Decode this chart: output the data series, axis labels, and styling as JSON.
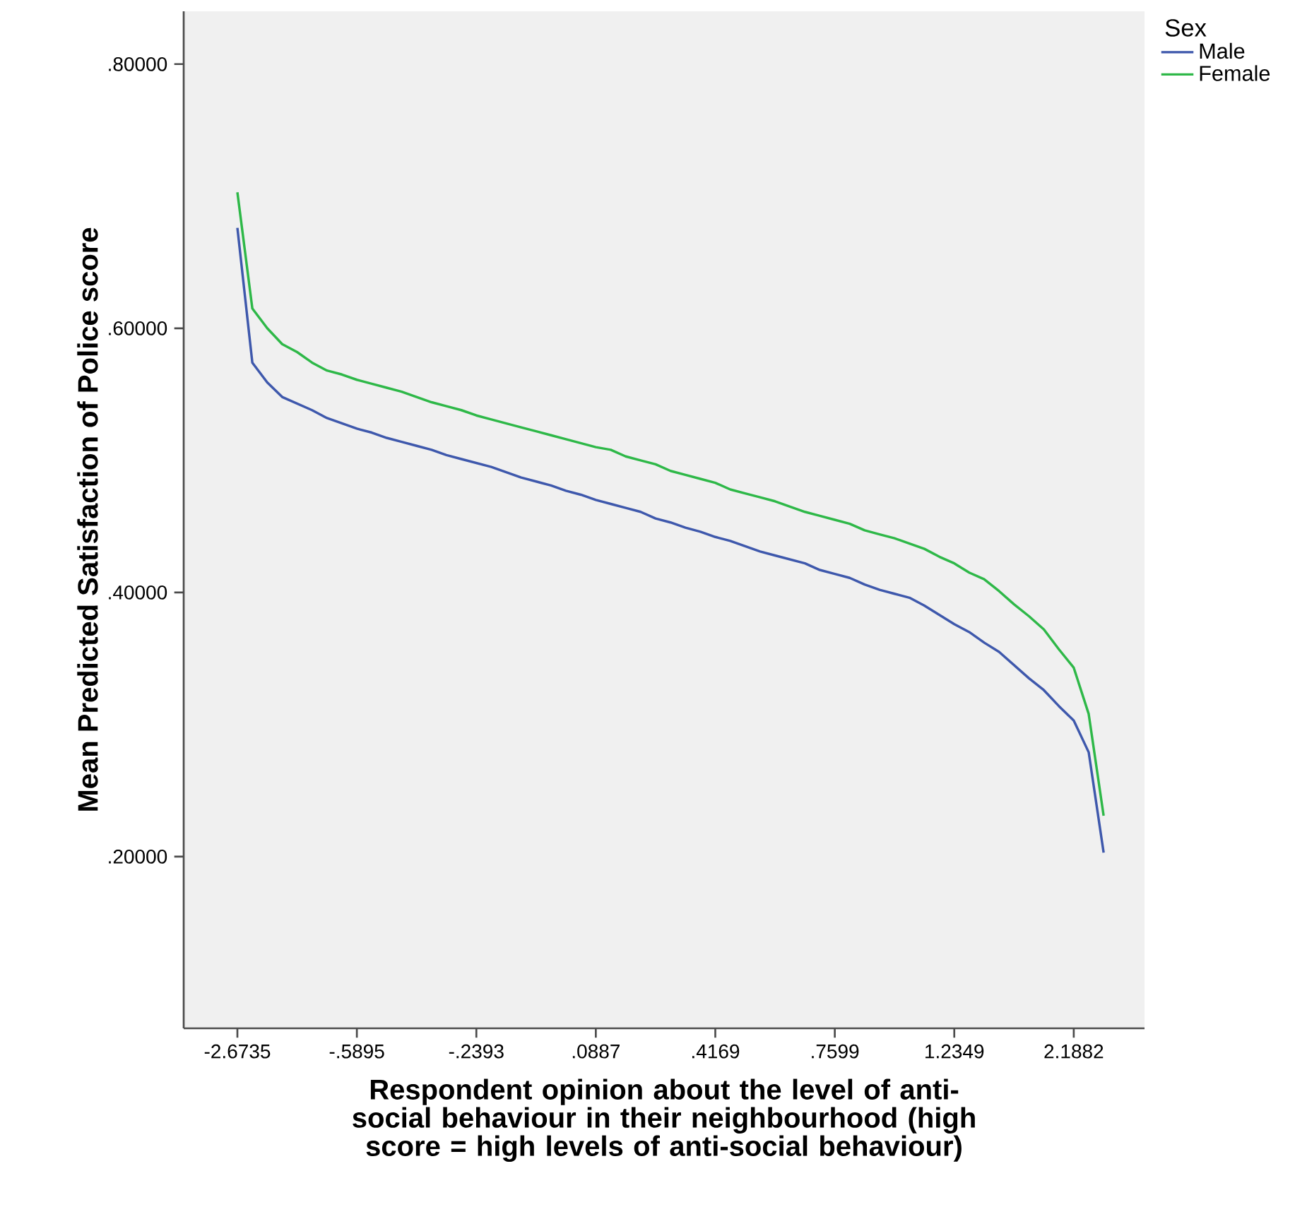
{
  "chart_data": {
    "type": "line",
    "xlabel": "Respondent opinion about the level of anti-social behaviour in their neighbourhood (high score = high levels of anti-social behaviour)",
    "ylabel": "Mean Predicted Satisfaction of Police score",
    "legend_title": "Sex",
    "legend": "top right",
    "categories": [
      "-2.6735",
      null,
      null,
      null,
      null,
      null,
      null,
      null,
      "-.5895",
      null,
      null,
      null,
      null,
      null,
      null,
      null,
      "-.2393",
      null,
      null,
      null,
      null,
      null,
      null,
      null,
      ".0887",
      null,
      null,
      null,
      null,
      null,
      null,
      null,
      ".4169",
      null,
      null,
      null,
      null,
      null,
      null,
      null,
      ".7599",
      null,
      null,
      null,
      null,
      null,
      null,
      null,
      "1.2349",
      null,
      null,
      null,
      null,
      null,
      null,
      null,
      "2.1882",
      null,
      null
    ],
    "ylim": [
      0.07,
      0.84
    ],
    "yticks": [
      {
        "value": 0.2,
        "label": ".20000"
      },
      {
        "value": 0.4,
        "label": ".40000"
      },
      {
        "value": 0.6,
        "label": ".60000"
      },
      {
        "value": 0.8,
        "label": ".80000"
      }
    ],
    "series": [
      {
        "name": "Male",
        "color": "#3e58ac",
        "values": [
          0.676,
          0.574,
          0.559,
          0.548,
          0.543,
          0.538,
          0.532,
          0.528,
          0.524,
          0.521,
          0.517,
          0.514,
          0.511,
          0.508,
          0.504,
          0.501,
          0.498,
          0.495,
          0.491,
          0.487,
          0.484,
          0.481,
          0.477,
          0.474,
          0.47,
          0.467,
          0.464,
          0.461,
          0.456,
          0.453,
          0.449,
          0.446,
          0.442,
          0.439,
          0.435,
          0.431,
          0.428,
          0.425,
          0.422,
          0.417,
          0.414,
          0.411,
          0.406,
          0.402,
          0.399,
          0.396,
          0.39,
          0.383,
          0.376,
          0.37,
          0.362,
          0.355,
          0.345,
          0.335,
          0.326,
          0.314,
          0.303,
          0.279,
          0.203
        ]
      },
      {
        "name": "Female",
        "color": "#2eb848",
        "values": [
          0.703,
          0.615,
          0.6,
          0.588,
          0.582,
          0.574,
          0.568,
          0.565,
          0.561,
          0.558,
          0.555,
          0.552,
          0.548,
          0.544,
          0.541,
          0.538,
          0.534,
          0.531,
          0.528,
          0.525,
          0.522,
          0.519,
          0.516,
          0.513,
          0.51,
          0.508,
          0.503,
          0.5,
          0.497,
          0.492,
          0.489,
          0.486,
          0.483,
          0.478,
          0.475,
          0.472,
          0.469,
          0.465,
          0.461,
          0.458,
          0.455,
          0.452,
          0.447,
          0.444,
          0.441,
          0.437,
          0.433,
          0.427,
          0.422,
          0.415,
          0.41,
          0.401,
          0.391,
          0.382,
          0.372,
          0.357,
          0.343,
          0.308,
          0.231
        ]
      }
    ]
  }
}
